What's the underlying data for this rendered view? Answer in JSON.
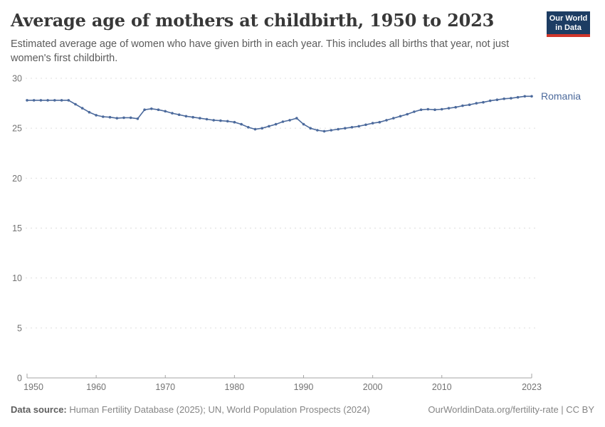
{
  "header": {
    "title": "Average age of mothers at childbirth, 1950 to 2023",
    "subtitle": "Estimated average age of women who have given birth in each year. This includes all births that year, not just women's first childbirth."
  },
  "logo": {
    "line1": "Our World",
    "line2": "in Data",
    "bg_color": "#1d3d63",
    "bar_color": "#d0362b"
  },
  "chart_data": {
    "type": "line",
    "title": "Average age of mothers at childbirth, 1950 to 2023",
    "xlabel": "",
    "ylabel": "",
    "ylim": [
      0,
      30
    ],
    "yticks": [
      0,
      5,
      10,
      15,
      20,
      25,
      30
    ],
    "xticks": [
      1950,
      1960,
      1970,
      1980,
      1990,
      2000,
      2010,
      2023
    ],
    "grid": "horizontal-dashed",
    "legend_position": "end-of-line",
    "x": [
      1950,
      1951,
      1952,
      1953,
      1954,
      1955,
      1956,
      1957,
      1958,
      1959,
      1960,
      1961,
      1962,
      1963,
      1964,
      1965,
      1966,
      1967,
      1968,
      1969,
      1970,
      1971,
      1972,
      1973,
      1974,
      1975,
      1976,
      1977,
      1978,
      1979,
      1980,
      1981,
      1982,
      1983,
      1984,
      1985,
      1986,
      1987,
      1988,
      1989,
      1990,
      1991,
      1992,
      1993,
      1994,
      1995,
      1996,
      1997,
      1998,
      1999,
      2000,
      2001,
      2002,
      2003,
      2004,
      2005,
      2006,
      2007,
      2008,
      2009,
      2010,
      2011,
      2012,
      2013,
      2014,
      2015,
      2016,
      2017,
      2018,
      2019,
      2020,
      2021,
      2022,
      2023
    ],
    "series": [
      {
        "name": "Romania",
        "color": "#4c6a9c",
        "values": [
          27.8,
          27.8,
          27.8,
          27.8,
          27.8,
          27.8,
          27.8,
          27.4,
          27.0,
          26.6,
          26.3,
          26.15,
          26.1,
          26.0,
          26.05,
          26.05,
          25.95,
          26.85,
          26.95,
          26.85,
          26.7,
          26.5,
          26.35,
          26.2,
          26.1,
          26.0,
          25.9,
          25.8,
          25.75,
          25.7,
          25.6,
          25.4,
          25.1,
          24.9,
          25.0,
          25.2,
          25.4,
          25.65,
          25.8,
          26.0,
          25.4,
          25.0,
          24.8,
          24.7,
          24.8,
          24.9,
          25.0,
          25.1,
          25.2,
          25.35,
          25.5,
          25.6,
          25.8,
          26.0,
          26.2,
          26.4,
          26.65,
          26.85,
          26.9,
          26.85,
          26.9,
          27.0,
          27.1,
          27.25,
          27.35,
          27.5,
          27.6,
          27.75,
          27.85,
          27.95,
          28.0,
          28.1,
          28.2,
          28.2
        ]
      }
    ],
    "style": {
      "gridline_color": "#dddddd",
      "axis_color": "#a5a5a5",
      "tick_label_color": "#737373"
    }
  },
  "footer": {
    "source_label": "Data source:",
    "source_text": "Human Fertility Database (2025); UN, World Population Prospects (2024)",
    "right_text": "OurWorldinData.org/fertility-rate | CC BY"
  }
}
